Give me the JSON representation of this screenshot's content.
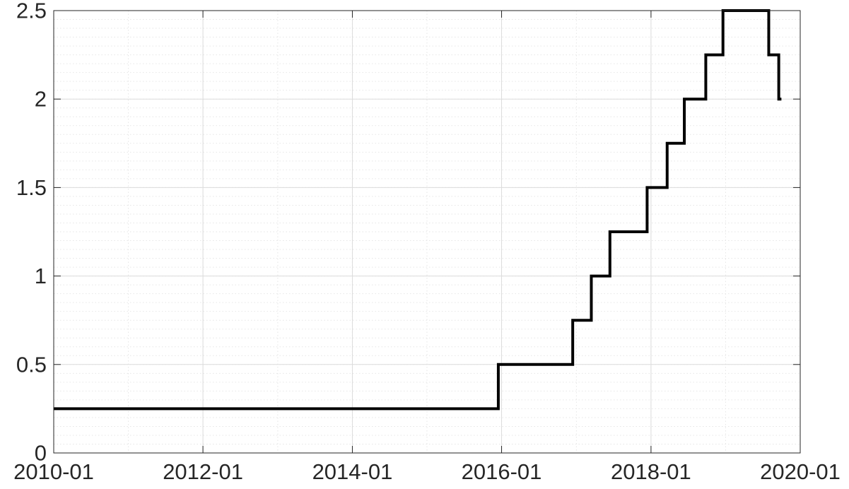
{
  "chart_data": {
    "type": "line",
    "title": "",
    "xlabel": "",
    "ylabel": "",
    "step": true,
    "grid": true,
    "minor_grid": true,
    "xlim": [
      "2010-01-01",
      "2020-01-01"
    ],
    "ylim": [
      0,
      2.5
    ],
    "x_ticks": [
      {
        "date": "2010-01-01",
        "label": "2010-01"
      },
      {
        "date": "2012-01-01",
        "label": "2012-01"
      },
      {
        "date": "2014-01-01",
        "label": "2014-01"
      },
      {
        "date": "2016-01-01",
        "label": "2016-01"
      },
      {
        "date": "2018-01-01",
        "label": "2018-01"
      },
      {
        "date": "2020-01-01",
        "label": "2020-01"
      }
    ],
    "y_ticks": [
      {
        "value": 0,
        "label": "0"
      },
      {
        "value": 0.5,
        "label": "0.5"
      },
      {
        "value": 1,
        "label": "1"
      },
      {
        "value": 1.5,
        "label": "1.5"
      },
      {
        "value": 2,
        "label": "2"
      },
      {
        "value": 2.5,
        "label": "2.5"
      }
    ],
    "line_color": "#000000",
    "series": [
      {
        "points": [
          {
            "date": "2010-01-01",
            "value": 0.25
          },
          {
            "date": "2015-12-16",
            "value": 0.5
          },
          {
            "date": "2016-12-14",
            "value": 0.75
          },
          {
            "date": "2017-03-15",
            "value": 1.0
          },
          {
            "date": "2017-06-14",
            "value": 1.25
          },
          {
            "date": "2017-12-13",
            "value": 1.5
          },
          {
            "date": "2018-03-21",
            "value": 1.75
          },
          {
            "date": "2018-06-13",
            "value": 2.0
          },
          {
            "date": "2018-09-26",
            "value": 2.25
          },
          {
            "date": "2018-12-19",
            "value": 2.5
          },
          {
            "date": "2019-07-31",
            "value": 2.25
          },
          {
            "date": "2019-09-18",
            "value": 2.0
          },
          {
            "date": "2019-10-01",
            "value": 2.0
          }
        ]
      }
    ]
  }
}
